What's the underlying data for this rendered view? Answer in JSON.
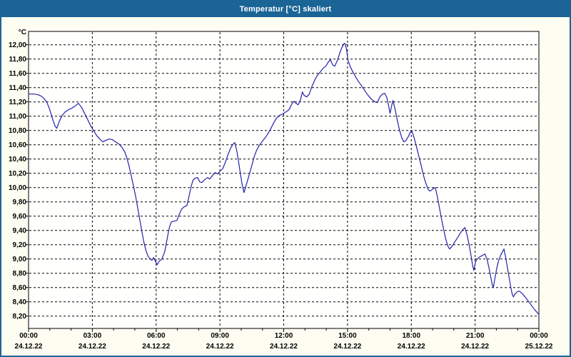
{
  "window": {
    "title": "Temperatur [°C] skaliert"
  },
  "colors": {
    "titlebar_bg": "#1a6496",
    "titlebar_text": "#ffffff",
    "window_bg": "#fdfdf2",
    "plot_bg": "#fffffe",
    "border_blue": "#1a6496",
    "grid": "#000000",
    "axis": "#000000",
    "line": "#2323aa",
    "text": "#000000"
  },
  "chart_data": {
    "type": "line",
    "title": "Temperatur [°C] skaliert",
    "xlabel": "",
    "ylabel": "°C",
    "ylim": [
      8.03,
      12.19
    ],
    "xlim_hours": [
      0,
      24
    ],
    "grid": "dashed",
    "legend": "none",
    "y_ticks": [
      {
        "value": 12.0,
        "label": "12,00"
      },
      {
        "value": 11.8,
        "label": "11,80"
      },
      {
        "value": 11.6,
        "label": "11,60"
      },
      {
        "value": 11.4,
        "label": "11,40"
      },
      {
        "value": 11.2,
        "label": "11,20"
      },
      {
        "value": 11.0,
        "label": "11,00"
      },
      {
        "value": 10.8,
        "label": "10,80"
      },
      {
        "value": 10.6,
        "label": "10,60"
      },
      {
        "value": 10.4,
        "label": "10,40"
      },
      {
        "value": 10.2,
        "label": "10,20"
      },
      {
        "value": 10.0,
        "label": "10,00"
      },
      {
        "value": 9.8,
        "label": "9,80"
      },
      {
        "value": 9.6,
        "label": "9,60"
      },
      {
        "value": 9.4,
        "label": "9,40"
      },
      {
        "value": 9.2,
        "label": "9,20"
      },
      {
        "value": 9.0,
        "label": "9,00"
      },
      {
        "value": 8.8,
        "label": "8,80"
      },
      {
        "value": 8.6,
        "label": "8,60"
      },
      {
        "value": 8.4,
        "label": "8,40"
      },
      {
        "value": 8.2,
        "label": "8,20"
      }
    ],
    "x_ticks": [
      {
        "hour": 0,
        "time": "00:00",
        "date": "24.12.22"
      },
      {
        "hour": 3,
        "time": "03:00",
        "date": "24.12.22"
      },
      {
        "hour": 6,
        "time": "06:00",
        "date": "24.12.22"
      },
      {
        "hour": 9,
        "time": "09:00",
        "date": "24.12.22"
      },
      {
        "hour": 12,
        "time": "12:00",
        "date": "24.12.22"
      },
      {
        "hour": 15,
        "time": "15:00",
        "date": "24.12.22"
      },
      {
        "hour": 18,
        "time": "18:00",
        "date": "24.12.22"
      },
      {
        "hour": 21,
        "time": "21:00",
        "date": "24.12.22"
      },
      {
        "hour": 24,
        "time": "00:00",
        "date": "25.12.22"
      }
    ],
    "minor_tick_every_hours": 1,
    "series": [
      {
        "name": "Temperatur",
        "unit": "°C",
        "points": [
          [
            0,
            11.31
          ],
          [
            0.25,
            11.31
          ],
          [
            0.45,
            11.3
          ],
          [
            0.6,
            11.28
          ],
          [
            0.72,
            11.25
          ],
          [
            0.85,
            11.2
          ],
          [
            0.95,
            11.13
          ],
          [
            1.05,
            11.04
          ],
          [
            1.15,
            10.94
          ],
          [
            1.25,
            10.86
          ],
          [
            1.33,
            10.83
          ],
          [
            1.45,
            10.93
          ],
          [
            1.58,
            11.01
          ],
          [
            1.72,
            11.06
          ],
          [
            1.88,
            11.09
          ],
          [
            2.02,
            11.11
          ],
          [
            2.18,
            11.14
          ],
          [
            2.35,
            11.18
          ],
          [
            2.5,
            11.12
          ],
          [
            2.65,
            11.03
          ],
          [
            2.8,
            10.94
          ],
          [
            2.95,
            10.85
          ],
          [
            3.05,
            10.8
          ],
          [
            3.2,
            10.73
          ],
          [
            3.35,
            10.68
          ],
          [
            3.5,
            10.64
          ],
          [
            3.62,
            10.66
          ],
          [
            3.8,
            10.68
          ],
          [
            3.95,
            10.67
          ],
          [
            4.1,
            10.64
          ],
          [
            4.25,
            10.61
          ],
          [
            4.4,
            10.56
          ],
          [
            4.52,
            10.5
          ],
          [
            4.62,
            10.42
          ],
          [
            4.72,
            10.31
          ],
          [
            4.82,
            10.18
          ],
          [
            4.92,
            10.04
          ],
          [
            5.02,
            9.9
          ],
          [
            5.12,
            9.74
          ],
          [
            5.22,
            9.57
          ],
          [
            5.32,
            9.4
          ],
          [
            5.42,
            9.24
          ],
          [
            5.52,
            9.12
          ],
          [
            5.62,
            9.04
          ],
          [
            5.72,
            9.0
          ],
          [
            5.8,
            8.98
          ],
          [
            5.88,
            9.02
          ],
          [
            5.96,
            8.97
          ],
          [
            6.05,
            8.92
          ],
          [
            6.15,
            8.97
          ],
          [
            6.27,
            9.0
          ],
          [
            6.4,
            9.1
          ],
          [
            6.5,
            9.25
          ],
          [
            6.58,
            9.38
          ],
          [
            6.65,
            9.47
          ],
          [
            6.72,
            9.52
          ],
          [
            6.85,
            9.53
          ],
          [
            6.98,
            9.54
          ],
          [
            7.08,
            9.62
          ],
          [
            7.2,
            9.7
          ],
          [
            7.32,
            9.73
          ],
          [
            7.45,
            9.75
          ],
          [
            7.55,
            9.88
          ],
          [
            7.65,
            10.02
          ],
          [
            7.73,
            10.1
          ],
          [
            7.82,
            10.13
          ],
          [
            7.95,
            10.14
          ],
          [
            8.05,
            10.08
          ],
          [
            8.15,
            10.07
          ],
          [
            8.28,
            10.11
          ],
          [
            8.42,
            10.14
          ],
          [
            8.52,
            10.12
          ],
          [
            8.65,
            10.17
          ],
          [
            8.78,
            10.21
          ],
          [
            8.9,
            10.19
          ],
          [
            9.0,
            10.23
          ],
          [
            9.12,
            10.26
          ],
          [
            9.25,
            10.35
          ],
          [
            9.38,
            10.46
          ],
          [
            9.5,
            10.55
          ],
          [
            9.62,
            10.61
          ],
          [
            9.7,
            10.63
          ],
          [
            9.8,
            10.5
          ],
          [
            9.88,
            10.36
          ],
          [
            9.96,
            10.2
          ],
          [
            10.04,
            10.05
          ],
          [
            10.13,
            9.93
          ],
          [
            10.25,
            10.05
          ],
          [
            10.38,
            10.18
          ],
          [
            10.5,
            10.31
          ],
          [
            10.62,
            10.44
          ],
          [
            10.72,
            10.52
          ],
          [
            10.85,
            10.59
          ],
          [
            11.0,
            10.65
          ],
          [
            11.18,
            10.72
          ],
          [
            11.35,
            10.8
          ],
          [
            11.5,
            10.89
          ],
          [
            11.65,
            10.97
          ],
          [
            11.8,
            11.01
          ],
          [
            11.95,
            11.03
          ],
          [
            12.1,
            11.06
          ],
          [
            12.25,
            11.09
          ],
          [
            12.38,
            11.17
          ],
          [
            12.48,
            11.21
          ],
          [
            12.58,
            11.18
          ],
          [
            12.68,
            11.16
          ],
          [
            12.8,
            11.24
          ],
          [
            12.88,
            11.34
          ],
          [
            12.96,
            11.29
          ],
          [
            13.08,
            11.27
          ],
          [
            13.2,
            11.31
          ],
          [
            13.32,
            11.41
          ],
          [
            13.45,
            11.5
          ],
          [
            13.58,
            11.57
          ],
          [
            13.72,
            11.62
          ],
          [
            13.85,
            11.67
          ],
          [
            13.98,
            11.7
          ],
          [
            14.1,
            11.76
          ],
          [
            14.2,
            11.79
          ],
          [
            14.3,
            11.72
          ],
          [
            14.4,
            11.7
          ],
          [
            14.52,
            11.78
          ],
          [
            14.62,
            11.87
          ],
          [
            14.72,
            11.95
          ],
          [
            14.82,
            12.01
          ],
          [
            14.88,
            12.02
          ],
          [
            14.95,
            11.94
          ],
          [
            15.02,
            11.79
          ],
          [
            15.12,
            11.7
          ],
          [
            15.25,
            11.62
          ],
          [
            15.4,
            11.54
          ],
          [
            15.55,
            11.47
          ],
          [
            15.7,
            11.41
          ],
          [
            15.85,
            11.34
          ],
          [
            16.0,
            11.28
          ],
          [
            16.15,
            11.23
          ],
          [
            16.3,
            11.2
          ],
          [
            16.4,
            11.19
          ],
          [
            16.52,
            11.27
          ],
          [
            16.65,
            11.31
          ],
          [
            16.75,
            11.32
          ],
          [
            16.85,
            11.26
          ],
          [
            16.95,
            11.12
          ],
          [
            17.0,
            11.04
          ],
          [
            17.08,
            11.15
          ],
          [
            17.14,
            11.22
          ],
          [
            17.25,
            11.08
          ],
          [
            17.35,
            10.93
          ],
          [
            17.45,
            10.8
          ],
          [
            17.55,
            10.7
          ],
          [
            17.65,
            10.64
          ],
          [
            17.75,
            10.66
          ],
          [
            17.85,
            10.71
          ],
          [
            17.95,
            10.77
          ],
          [
            18.02,
            10.8
          ],
          [
            18.12,
            10.71
          ],
          [
            18.22,
            10.6
          ],
          [
            18.32,
            10.48
          ],
          [
            18.42,
            10.36
          ],
          [
            18.52,
            10.24
          ],
          [
            18.62,
            10.12
          ],
          [
            18.72,
            10.03
          ],
          [
            18.8,
            9.97
          ],
          [
            18.88,
            9.95
          ],
          [
            18.97,
            9.97
          ],
          [
            19.06,
            9.99
          ],
          [
            19.13,
            10.0
          ],
          [
            19.22,
            9.88
          ],
          [
            19.32,
            9.72
          ],
          [
            19.42,
            9.56
          ],
          [
            19.52,
            9.42
          ],
          [
            19.62,
            9.28
          ],
          [
            19.72,
            9.18
          ],
          [
            19.8,
            9.14
          ],
          [
            19.92,
            9.18
          ],
          [
            20.05,
            9.24
          ],
          [
            20.18,
            9.3
          ],
          [
            20.3,
            9.36
          ],
          [
            20.42,
            9.41
          ],
          [
            20.52,
            9.44
          ],
          [
            20.62,
            9.34
          ],
          [
            20.72,
            9.2
          ],
          [
            20.8,
            9.06
          ],
          [
            20.88,
            8.92
          ],
          [
            20.94,
            8.84
          ],
          [
            21.02,
            8.96
          ],
          [
            21.1,
            9.0
          ],
          [
            21.22,
            9.03
          ],
          [
            21.35,
            9.05
          ],
          [
            21.46,
            9.07
          ],
          [
            21.56,
            9.0
          ],
          [
            21.65,
            8.88
          ],
          [
            21.74,
            8.74
          ],
          [
            21.82,
            8.62
          ],
          [
            21.86,
            8.6
          ],
          [
            21.94,
            8.74
          ],
          [
            22.02,
            8.87
          ],
          [
            22.1,
            8.97
          ],
          [
            22.2,
            9.05
          ],
          [
            22.3,
            9.11
          ],
          [
            22.36,
            9.14
          ],
          [
            22.44,
            9.02
          ],
          [
            22.52,
            8.88
          ],
          [
            22.6,
            8.74
          ],
          [
            22.68,
            8.6
          ],
          [
            22.75,
            8.5
          ],
          [
            22.8,
            8.47
          ],
          [
            22.88,
            8.51
          ],
          [
            22.98,
            8.54
          ],
          [
            23.08,
            8.55
          ],
          [
            23.2,
            8.52
          ],
          [
            23.35,
            8.47
          ],
          [
            23.5,
            8.41
          ],
          [
            23.65,
            8.35
          ],
          [
            23.8,
            8.29
          ],
          [
            23.92,
            8.25
          ],
          [
            24.0,
            8.22
          ]
        ]
      }
    ]
  }
}
